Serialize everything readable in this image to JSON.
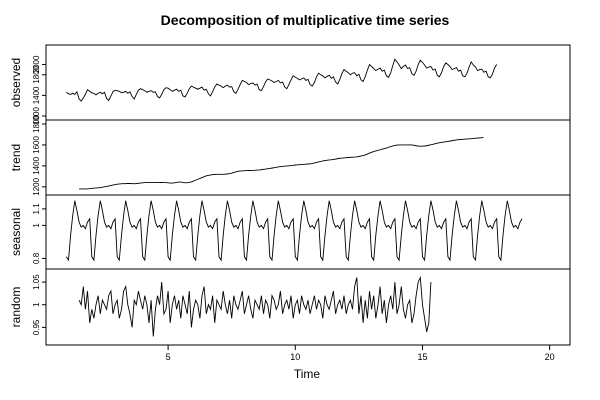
{
  "chart_data": {
    "type": "line",
    "title": "Decomposition of multiplicative time series",
    "xlabel": "Time",
    "xlim": [
      0.2,
      20.8
    ],
    "x_ticks": [
      5,
      10,
      15,
      20
    ],
    "grid": false,
    "legend": "none",
    "line_color": "#000000",
    "panels": [
      {
        "name": "observed",
        "ylabel": "observed",
        "ylim": [
          1000,
          2300
        ],
        "y_ticks": [
          1000,
          1400,
          1800,
          2000
        ],
        "x_start": 1,
        "step": 0.0833333,
        "values": [
          1460,
          1430,
          1420,
          1440,
          1420,
          1470,
          1330,
          1290,
          1350,
          1420,
          1510,
          1480,
          1450,
          1440,
          1410,
          1440,
          1460,
          1430,
          1460,
          1340,
          1300,
          1390,
          1470,
          1500,
          1490,
          1480,
          1450,
          1460,
          1480,
          1440,
          1470,
          1380,
          1330,
          1420,
          1500,
          1530,
          1510,
          1490,
          1460,
          1480,
          1490,
          1460,
          1470,
          1380,
          1350,
          1420,
          1510,
          1550,
          1540,
          1510,
          1480,
          1500,
          1520,
          1480,
          1500,
          1390,
          1370,
          1440,
          1530,
          1580,
          1560,
          1540,
          1520,
          1540,
          1560,
          1500,
          1520,
          1430,
          1390,
          1470,
          1560,
          1620,
          1600,
          1580,
          1550,
          1580,
          1600,
          1560,
          1570,
          1470,
          1440,
          1520,
          1610,
          1690,
          1670,
          1650,
          1610,
          1630,
          1640,
          1600,
          1620,
          1510,
          1490,
          1570,
          1660,
          1720,
          1700,
          1680,
          1650,
          1670,
          1690,
          1640,
          1660,
          1560,
          1530,
          1610,
          1700,
          1780,
          1750,
          1730,
          1700,
          1720,
          1740,
          1690,
          1710,
          1610,
          1580,
          1650,
          1760,
          1830,
          1800,
          1780,
          1740,
          1770,
          1790,
          1730,
          1760,
          1660,
          1620,
          1710,
          1820,
          1900,
          1870,
          1840,
          1800,
          1830,
          1840,
          1780,
          1810,
          1700,
          1670,
          1760,
          1890,
          2000,
          1960,
          1920,
          1880,
          1910,
          1930,
          1870,
          1890,
          1780,
          1750,
          1840,
          1980,
          2100,
          2050,
          1990,
          1920,
          1960,
          1990,
          1920,
          1940,
          1820,
          1790,
          1870,
          2000,
          2080,
          2040,
          1990,
          1930,
          1950,
          1960,
          1890,
          1910,
          1790,
          1760,
          1840,
          1960,
          2030,
          2000,
          1960,
          1900,
          1920,
          1940,
          1870,
          1890,
          1780,
          1760,
          1830,
          1950,
          2050,
          1990,
          1950,
          1880,
          1900,
          1910,
          1850,
          1870,
          1760,
          1740,
          1810,
          1930,
          2000
        ]
      },
      {
        "name": "trend",
        "ylabel": "trend",
        "ylim": [
          1160,
          1800
        ],
        "y_ticks": [
          1200,
          1400,
          1600,
          1800
        ],
        "x_start": 1.5,
        "step": 0.1,
        "values": [
          1180,
          1180,
          1180,
          1180,
          1182,
          1185,
          1188,
          1190,
          1192,
          1195,
          1200,
          1205,
          1210,
          1215,
          1220,
          1225,
          1228,
          1230,
          1230,
          1232,
          1232,
          1230,
          1230,
          1232,
          1235,
          1238,
          1240,
          1240,
          1240,
          1240,
          1240,
          1240,
          1242,
          1240,
          1240,
          1238,
          1235,
          1235,
          1240,
          1245,
          1245,
          1240,
          1238,
          1240,
          1245,
          1255,
          1265,
          1275,
          1285,
          1295,
          1305,
          1310,
          1315,
          1318,
          1320,
          1320,
          1320,
          1320,
          1322,
          1325,
          1330,
          1338,
          1345,
          1350,
          1352,
          1354,
          1355,
          1356,
          1357,
          1358,
          1360,
          1362,
          1365,
          1368,
          1372,
          1376,
          1380,
          1384,
          1388,
          1392,
          1395,
          1398,
          1400,
          1402,
          1405,
          1408,
          1410,
          1412,
          1414,
          1416,
          1418,
          1420,
          1425,
          1430,
          1436,
          1442,
          1448,
          1452,
          1455,
          1458,
          1462,
          1466,
          1470,
          1473,
          1476,
          1478,
          1480,
          1482,
          1484,
          1486,
          1490,
          1495,
          1500,
          1510,
          1520,
          1530,
          1538,
          1545,
          1552,
          1558,
          1565,
          1572,
          1580,
          1588,
          1594,
          1598,
          1600,
          1600,
          1600,
          1600,
          1600,
          1600,
          1595,
          1590,
          1588,
          1588,
          1590,
          1595,
          1600,
          1605,
          1612,
          1618,
          1622,
          1626,
          1630,
          1634,
          1638,
          1642,
          1646,
          1650,
          1652,
          1654,
          1656,
          1658,
          1660,
          1662,
          1664,
          1666,
          1668,
          1670
        ]
      },
      {
        "name": "seasonal",
        "ylabel": "seasonal",
        "ylim": [
          0.76,
          1.16
        ],
        "y_ticks": [
          0.8,
          1.0,
          1.1
        ],
        "x_start": 1,
        "step": 0.0833333,
        "values": [
          0.81,
          0.79,
          0.94,
          1.06,
          1.15,
          1.09,
          1.02,
          0.99,
          1.0,
          0.98,
          1.02,
          1.04,
          0.81,
          0.79,
          0.94,
          1.06,
          1.15,
          1.09,
          1.02,
          0.99,
          1.0,
          0.98,
          1.02,
          1.04,
          0.81,
          0.79,
          0.94,
          1.06,
          1.15,
          1.09,
          1.02,
          0.99,
          1.0,
          0.98,
          1.02,
          1.04,
          0.81,
          0.79,
          0.94,
          1.06,
          1.15,
          1.09,
          1.02,
          0.99,
          1.0,
          0.98,
          1.02,
          1.04,
          0.81,
          0.79,
          0.94,
          1.06,
          1.15,
          1.09,
          1.02,
          0.99,
          1.0,
          0.98,
          1.02,
          1.04,
          0.81,
          0.79,
          0.94,
          1.06,
          1.15,
          1.09,
          1.02,
          0.99,
          1.0,
          0.98,
          1.02,
          1.04,
          0.81,
          0.79,
          0.94,
          1.06,
          1.15,
          1.09,
          1.02,
          0.99,
          1.0,
          0.98,
          1.02,
          1.04,
          0.81,
          0.79,
          0.94,
          1.06,
          1.15,
          1.09,
          1.02,
          0.99,
          1.0,
          0.98,
          1.02,
          1.04,
          0.81,
          0.79,
          0.94,
          1.06,
          1.15,
          1.09,
          1.02,
          0.99,
          1.0,
          0.98,
          1.02,
          1.04,
          0.81,
          0.79,
          0.94,
          1.06,
          1.15,
          1.09,
          1.02,
          0.99,
          1.0,
          0.98,
          1.02,
          1.04,
          0.81,
          0.79,
          0.94,
          1.06,
          1.15,
          1.09,
          1.02,
          0.99,
          1.0,
          0.98,
          1.02,
          1.04,
          0.81,
          0.79,
          0.94,
          1.06,
          1.15,
          1.09,
          1.02,
          0.99,
          1.0,
          0.98,
          1.02,
          1.04,
          0.81,
          0.79,
          0.94,
          1.06,
          1.15,
          1.09,
          1.02,
          0.99,
          1.0,
          0.98,
          1.02,
          1.04,
          0.81,
          0.79,
          0.94,
          1.06,
          1.15,
          1.09,
          1.02,
          0.99,
          1.0,
          0.98,
          1.02,
          1.04,
          0.81,
          0.79,
          0.94,
          1.06,
          1.15,
          1.09,
          1.02,
          0.99,
          1.0,
          0.98,
          1.02,
          1.04,
          0.81,
          0.79,
          0.94,
          1.06,
          1.15,
          1.09,
          1.02,
          0.99,
          1.0,
          0.98,
          1.02,
          1.04,
          0.81,
          0.79,
          0.94,
          1.06,
          1.15,
          1.09,
          1.02,
          0.99,
          1.0,
          0.98,
          1.02,
          1.04,
          0.81,
          0.79,
          0.94,
          1.06,
          1.15,
          1.09,
          1.02,
          0.99,
          1.0,
          0.98,
          1.02,
          1.04
        ]
      },
      {
        "name": "random",
        "ylabel": "random",
        "ylim": [
          0.92,
          1.07
        ],
        "y_ticks": [
          0.95,
          1.0,
          1.05
        ],
        "x_start": 1.5,
        "step": 0.0833333,
        "values": [
          1.01,
          1.0,
          1.04,
          0.99,
          1.03,
          0.96,
          0.99,
          0.97,
          1.0,
          1.02,
          0.98,
          1.01,
          1.0,
          0.99,
          1.02,
          1.03,
          0.98,
          1.0,
          1.01,
          0.97,
          0.99,
          1.03,
          1.04,
          1.0,
          0.98,
          0.95,
          1.01,
          1.0,
          1.03,
          1.01,
          0.99,
          1.02,
          1.0,
          0.96,
          1.01,
          0.93,
          0.99,
          1.02,
          1.0,
          1.05,
          0.98,
          0.99,
          1.03,
          0.96,
          1.0,
          1.02,
          0.99,
          1.01,
          0.97,
          1.02,
          1.0,
          0.98,
          1.03,
          0.95,
          0.99,
          1.01,
          1.0,
          0.97,
          1.02,
          1.04,
          0.98,
          1.0,
          0.99,
          1.02,
          0.96,
          1.01,
          1.0,
          0.99,
          1.03,
          1.0,
          0.98,
          1.01,
          0.97,
          1.02,
          1.0,
          0.99,
          1.01,
          1.03,
          0.98,
          1.0,
          1.02,
          0.99,
          0.97,
          1.01,
          1.0,
          0.99,
          1.02,
          0.98,
          1.01,
          1.0,
          0.97,
          1.02,
          1.01,
          0.99,
          1.0,
          1.03,
          0.98,
          1.0,
          1.01,
          0.99,
          1.02,
          0.97,
          1.0,
          1.01,
          0.98,
          1.02,
          1.0,
          0.99,
          1.01,
          0.98,
          1.0,
          1.02,
          0.99,
          1.01,
          1.0,
          0.97,
          1.02,
          1.0,
          0.99,
          1.01,
          1.03,
          0.98,
          1.0,
          1.01,
          0.99,
          1.02,
          0.98,
          1.0,
          1.01,
          0.99,
          1.04,
          1.06,
          0.98,
          1.02,
          0.96,
          1.01,
          0.97,
          1.03,
          0.99,
          1.02,
          0.97,
          1.0,
          1.04,
          0.98,
          1.01,
          0.96,
          1.0,
          1.02,
          0.99,
          1.05,
          0.98,
          1.0,
          1.04,
          0.99,
          0.97,
          1.0,
          1.01,
          0.96,
          0.98,
          1.02,
          1.05,
          1.06,
          1.0,
          0.97,
          0.94,
          0.96,
          1.05
        ]
      }
    ]
  }
}
